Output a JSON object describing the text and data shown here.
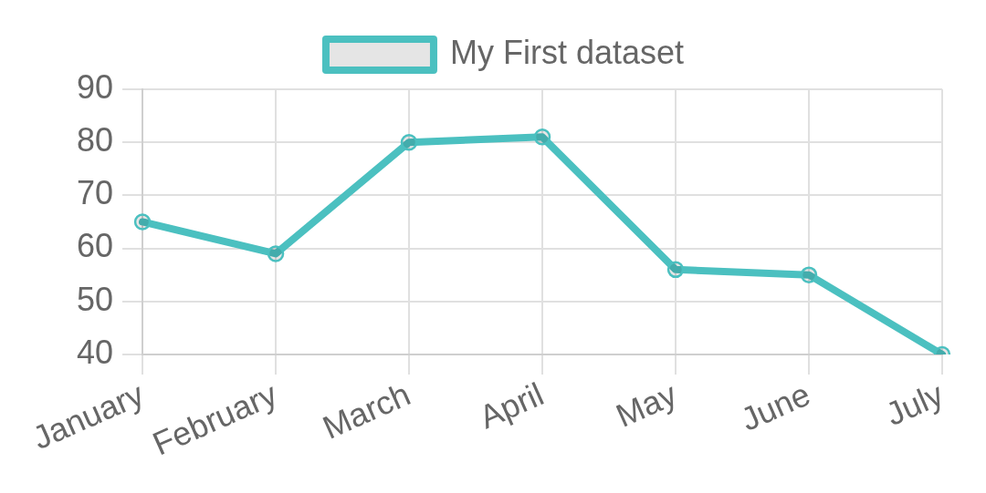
{
  "chart_data": {
    "type": "line",
    "categories": [
      "January",
      "February",
      "March",
      "April",
      "May",
      "June",
      "July"
    ],
    "series": [
      {
        "name": "My First dataset",
        "color": "#4bc0c0",
        "values": [
          65,
          59,
          80,
          81,
          56,
          55,
          40
        ]
      }
    ],
    "ylim": [
      40,
      90
    ],
    "yticks": [
      40,
      50,
      60,
      70,
      80,
      90
    ],
    "grid": true,
    "legend": "top",
    "marker": "circle"
  }
}
